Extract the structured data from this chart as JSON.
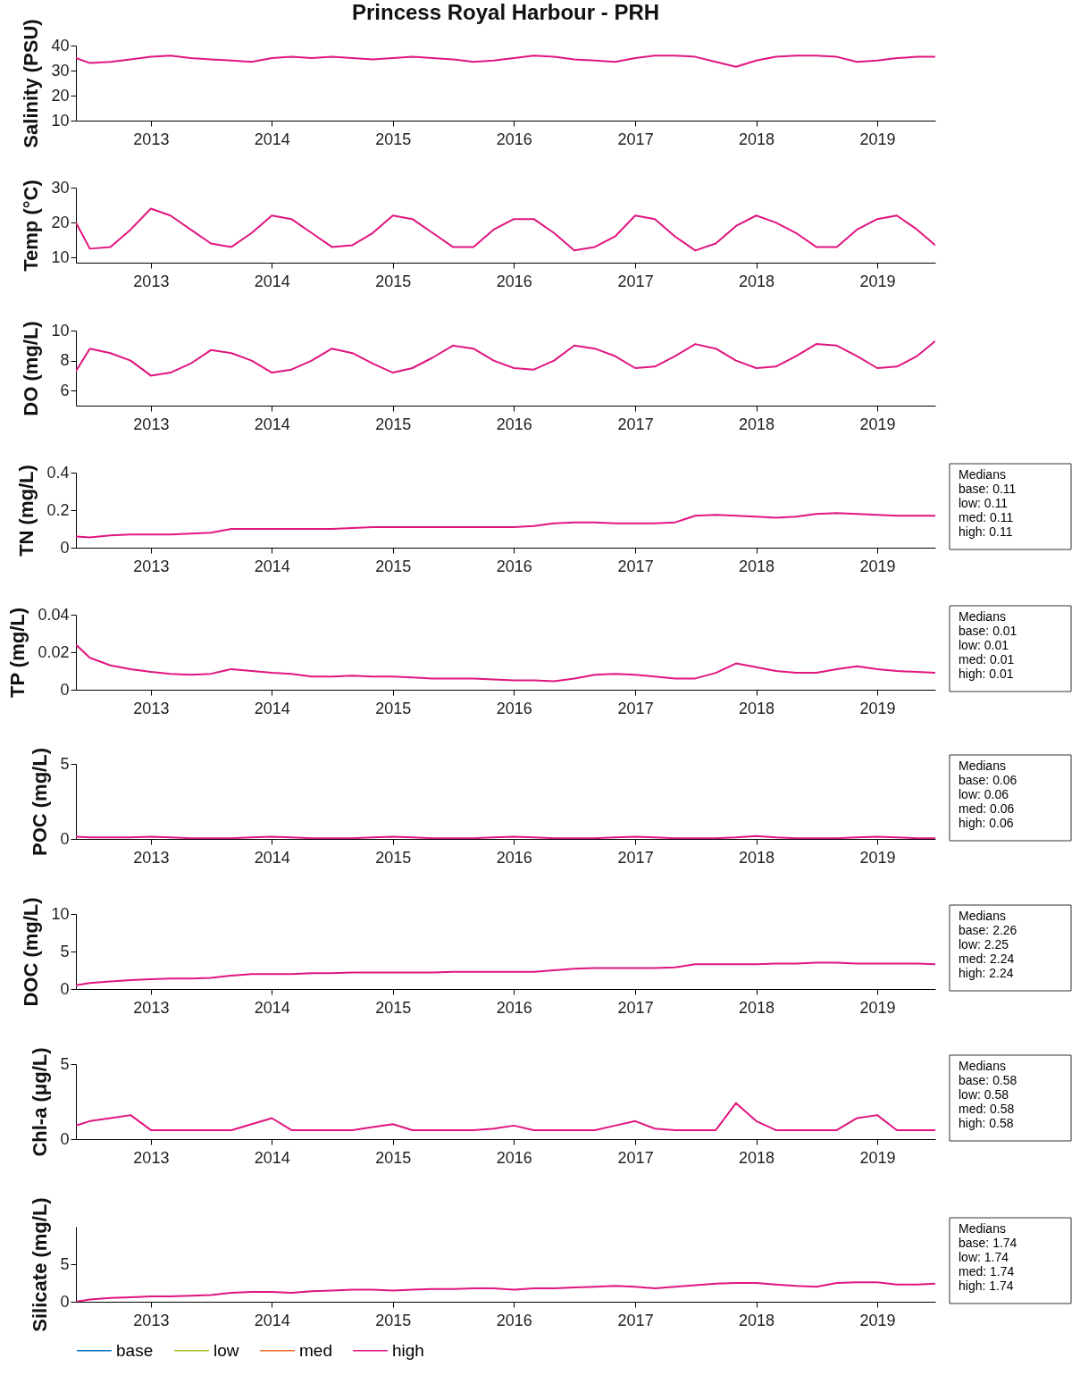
{
  "chart_data": [
    {
      "type": "line",
      "title": "Princess Royal Harbour - PRH",
      "ylabel": "Salinity (PSU)",
      "xlim": [
        "2012-05-20",
        "2019-06-25"
      ],
      "xticks": [
        "2013",
        "2014",
        "2015",
        "2016",
        "2017",
        "2018",
        "2019"
      ],
      "ylim": [
        10,
        40
      ],
      "yticks": [
        10,
        20,
        30,
        40
      ],
      "x": [
        "2012-05-20",
        "2012-07",
        "2012-09",
        "2012-11",
        "2013-01",
        "2013-03",
        "2013-05",
        "2013-07",
        "2013-09",
        "2013-11",
        "2014-01",
        "2014-03",
        "2014-05",
        "2014-07",
        "2014-09",
        "2014-11",
        "2015-01",
        "2015-03",
        "2015-05",
        "2015-07",
        "2015-09",
        "2015-11",
        "2016-01",
        "2016-03",
        "2016-05",
        "2016-07",
        "2016-09",
        "2016-11",
        "2017-01",
        "2017-03",
        "2017-05",
        "2017-07",
        "2017-09",
        "2017-11",
        "2018-01",
        "2018-03",
        "2018-05",
        "2018-07",
        "2018-09",
        "2018-11",
        "2019-01",
        "2019-03",
        "2019-05",
        "2019-06-25"
      ],
      "series": [
        {
          "color": "#e0157f",
          "values": [
            35,
            33,
            33.5,
            34.5,
            35.5,
            36,
            35,
            34.5,
            34,
            33.5,
            35,
            35.5,
            35,
            35.5,
            35,
            34.5,
            35,
            35.5,
            35,
            34.5,
            33.5,
            34,
            35,
            36,
            35.5,
            34.5,
            34,
            33.5,
            35,
            36,
            36,
            35.5,
            33.5,
            31.5,
            34,
            35.5,
            36,
            36,
            35.5,
            33.5,
            34,
            35,
            35.5,
            35.5
          ]
        }
      ]
    },
    {
      "type": "line",
      "ylabel": "Temp (°C)",
      "xlim": [
        "2012-05-20",
        "2019-06-25"
      ],
      "xticks": [
        "2013",
        "2014",
        "2015",
        "2016",
        "2017",
        "2018",
        "2019"
      ],
      "ylim": [
        8.5,
        30
      ],
      "yticks": [
        10,
        20,
        30
      ],
      "x": [
        "2012-05-20",
        "2012-07",
        "2012-09",
        "2012-11",
        "2013-01",
        "2013-03",
        "2013-05",
        "2013-07",
        "2013-09",
        "2013-11",
        "2014-01",
        "2014-03",
        "2014-05",
        "2014-07",
        "2014-09",
        "2014-11",
        "2015-01",
        "2015-03",
        "2015-05",
        "2015-07",
        "2015-09",
        "2015-11",
        "2016-01",
        "2016-03",
        "2016-05",
        "2016-07",
        "2016-09",
        "2016-11",
        "2017-01",
        "2017-03",
        "2017-05",
        "2017-07",
        "2017-09",
        "2017-11",
        "2018-01",
        "2018-03",
        "2018-05",
        "2018-07",
        "2018-09",
        "2018-11",
        "2019-01",
        "2019-03",
        "2019-05",
        "2019-06-25"
      ],
      "series": [
        {
          "color": "#e0157f",
          "values": [
            20,
            12.5,
            13,
            18,
            24,
            22,
            18,
            14,
            13,
            17,
            22,
            21,
            17,
            13,
            13.5,
            17,
            22,
            21,
            17,
            13,
            13,
            18,
            21,
            21,
            17,
            12,
            13,
            16,
            22,
            21,
            16,
            12,
            14,
            19,
            22,
            20,
            17,
            13,
            13,
            18,
            21,
            22,
            18,
            13.5
          ]
        }
      ]
    },
    {
      "type": "line",
      "ylabel": "DO (mg/L)",
      "xlim": [
        "2012-05-20",
        "2019-06-25"
      ],
      "xticks": [
        "2013",
        "2014",
        "2015",
        "2016",
        "2017",
        "2018",
        "2019"
      ],
      "ylim": [
        5,
        10
      ],
      "yticks": [
        6,
        8,
        10
      ],
      "x": [
        "2012-05-20",
        "2012-07",
        "2012-09",
        "2012-11",
        "2013-01",
        "2013-03",
        "2013-05",
        "2013-07",
        "2013-09",
        "2013-11",
        "2014-01",
        "2014-03",
        "2014-05",
        "2014-07",
        "2014-09",
        "2014-11",
        "2015-01",
        "2015-03",
        "2015-05",
        "2015-07",
        "2015-09",
        "2015-11",
        "2016-01",
        "2016-03",
        "2016-05",
        "2016-07",
        "2016-09",
        "2016-11",
        "2017-01",
        "2017-03",
        "2017-05",
        "2017-07",
        "2017-09",
        "2017-11",
        "2018-01",
        "2018-03",
        "2018-05",
        "2018-07",
        "2018-09",
        "2018-11",
        "2019-01",
        "2019-03",
        "2019-05",
        "2019-06-25"
      ],
      "series": [
        {
          "color": "#e0157f",
          "values": [
            7.3,
            8.8,
            8.5,
            8,
            7,
            7.2,
            7.8,
            8.7,
            8.5,
            8,
            7.2,
            7.4,
            8,
            8.8,
            8.5,
            7.8,
            7.2,
            7.5,
            8.2,
            9,
            8.8,
            8,
            7.5,
            7.4,
            8,
            9,
            8.8,
            8.3,
            7.5,
            7.6,
            8.3,
            9.1,
            8.8,
            8,
            7.5,
            7.6,
            8.3,
            9.1,
            9,
            8.3,
            7.5,
            7.6,
            8.3,
            9.3
          ]
        }
      ]
    },
    {
      "type": "line",
      "ylabel": "TN (mg/L)",
      "xlim": [
        "2012-05-20",
        "2019-06-25"
      ],
      "xticks": [
        "2013",
        "2014",
        "2015",
        "2016",
        "2017",
        "2018",
        "2019"
      ],
      "ylim": [
        0,
        0.4
      ],
      "yticks": [
        0,
        0.2,
        0.4
      ],
      "annotations": [
        "Medians\nbase: 0.11\nlow: 0.11\nmed: 0.11\nhigh: 0.11"
      ],
      "x": [
        "2012-05-20",
        "2012-07",
        "2012-09",
        "2012-11",
        "2013-01",
        "2013-03",
        "2013-05",
        "2013-07",
        "2013-09",
        "2013-11",
        "2014-01",
        "2014-03",
        "2014-05",
        "2014-07",
        "2014-09",
        "2014-11",
        "2015-01",
        "2015-03",
        "2015-05",
        "2015-07",
        "2015-09",
        "2015-11",
        "2016-01",
        "2016-03",
        "2016-05",
        "2016-07",
        "2016-09",
        "2016-11",
        "2017-01",
        "2017-03",
        "2017-05",
        "2017-07",
        "2017-09",
        "2017-11",
        "2018-01",
        "2018-03",
        "2018-05",
        "2018-07",
        "2018-09",
        "2018-11",
        "2019-01",
        "2019-03",
        "2019-05",
        "2019-06-25"
      ],
      "series": [
        {
          "color": "#e0157f",
          "values": [
            0.06,
            0.055,
            0.065,
            0.07,
            0.07,
            0.07,
            0.075,
            0.08,
            0.1,
            0.1,
            0.1,
            0.1,
            0.1,
            0.1,
            0.105,
            0.11,
            0.11,
            0.11,
            0.11,
            0.11,
            0.11,
            0.11,
            0.11,
            0.115,
            0.13,
            0.135,
            0.135,
            0.13,
            0.13,
            0.13,
            0.135,
            0.17,
            0.175,
            0.17,
            0.165,
            0.16,
            0.165,
            0.18,
            0.185,
            0.18,
            0.175,
            0.17,
            0.17,
            0.17
          ]
        }
      ]
    },
    {
      "type": "line",
      "ylabel": "TP (mg/L)",
      "xlim": [
        "2012-05-20",
        "2019-06-25"
      ],
      "xticks": [
        "2013",
        "2014",
        "2015",
        "2016",
        "2017",
        "2018",
        "2019"
      ],
      "ylim": [
        0,
        0.04
      ],
      "yticks": [
        0,
        0.02,
        0.04
      ],
      "annotations": [
        "Medians\nbase: 0.01\nlow: 0.01\nmed: 0.01\nhigh: 0.01"
      ],
      "x": [
        "2012-05-20",
        "2012-07",
        "2012-09",
        "2012-11",
        "2013-01",
        "2013-03",
        "2013-05",
        "2013-07",
        "2013-09",
        "2013-11",
        "2014-01",
        "2014-03",
        "2014-05",
        "2014-07",
        "2014-09",
        "2014-11",
        "2015-01",
        "2015-03",
        "2015-05",
        "2015-07",
        "2015-09",
        "2015-11",
        "2016-01",
        "2016-03",
        "2016-05",
        "2016-07",
        "2016-09",
        "2016-11",
        "2017-01",
        "2017-03",
        "2017-05",
        "2017-07",
        "2017-09",
        "2017-11",
        "2018-01",
        "2018-03",
        "2018-05",
        "2018-07",
        "2018-09",
        "2018-11",
        "2019-01",
        "2019-03",
        "2019-05",
        "2019-06-25"
      ],
      "series": [
        {
          "color": "#e0157f",
          "values": [
            0.024,
            0.017,
            0.013,
            0.011,
            0.0095,
            0.0085,
            0.008,
            0.0085,
            0.011,
            0.01,
            0.009,
            0.0085,
            0.007,
            0.007,
            0.0075,
            0.007,
            0.007,
            0.0065,
            0.006,
            0.006,
            0.006,
            0.0055,
            0.005,
            0.005,
            0.0045,
            0.006,
            0.008,
            0.0085,
            0.008,
            0.007,
            0.006,
            0.006,
            0.009,
            0.014,
            0.012,
            0.01,
            0.009,
            0.009,
            0.011,
            0.0125,
            0.011,
            0.01,
            0.0095,
            0.009
          ]
        }
      ]
    },
    {
      "type": "line",
      "ylabel": "POC (mg/L)",
      "xlim": [
        "2012-05-20",
        "2019-06-25"
      ],
      "xticks": [
        "2013",
        "2014",
        "2015",
        "2016",
        "2017",
        "2018",
        "2019"
      ],
      "ylim": [
        0,
        5
      ],
      "yticks": [
        0,
        5
      ],
      "annotations": [
        "Medians\nbase: 0.06\nlow: 0.06\nmed: 0.06\nhigh: 0.06"
      ],
      "x": [
        "2012-05-20",
        "2012-07",
        "2012-09",
        "2012-11",
        "2013-01",
        "2013-03",
        "2013-05",
        "2013-07",
        "2013-09",
        "2013-11",
        "2014-01",
        "2014-03",
        "2014-05",
        "2014-07",
        "2014-09",
        "2014-11",
        "2015-01",
        "2015-03",
        "2015-05",
        "2015-07",
        "2015-09",
        "2015-11",
        "2016-01",
        "2016-03",
        "2016-05",
        "2016-07",
        "2016-09",
        "2016-11",
        "2017-01",
        "2017-03",
        "2017-05",
        "2017-07",
        "2017-09",
        "2017-11",
        "2018-01",
        "2018-03",
        "2018-05",
        "2018-07",
        "2018-09",
        "2018-11",
        "2019-01",
        "2019-03",
        "2019-05",
        "2019-06-25"
      ],
      "series": [
        {
          "color": "#e0157f",
          "values": [
            0.15,
            0.1,
            0.1,
            0.1,
            0.15,
            0.1,
            0.05,
            0.05,
            0.05,
            0.1,
            0.15,
            0.1,
            0.05,
            0.05,
            0.05,
            0.1,
            0.15,
            0.1,
            0.05,
            0.05,
            0.05,
            0.1,
            0.15,
            0.1,
            0.05,
            0.05,
            0.05,
            0.1,
            0.15,
            0.1,
            0.05,
            0.05,
            0.05,
            0.1,
            0.2,
            0.1,
            0.05,
            0.05,
            0.05,
            0.1,
            0.15,
            0.1,
            0.05,
            0.05
          ]
        }
      ]
    },
    {
      "type": "line",
      "ylabel": "DOC (mg/L)",
      "xlim": [
        "2012-05-20",
        "2019-06-25"
      ],
      "xticks": [
        "2013",
        "2014",
        "2015",
        "2016",
        "2017",
        "2018",
        "2019"
      ],
      "ylim": [
        0,
        10
      ],
      "yticks": [
        0,
        5,
        10
      ],
      "annotations": [
        "Medians\nbase: 2.26\nlow: 2.25\nmed: 2.24\nhigh: 2.24"
      ],
      "x": [
        "2012-05-20",
        "2012-07",
        "2012-09",
        "2012-11",
        "2013-01",
        "2013-03",
        "2013-05",
        "2013-07",
        "2013-09",
        "2013-11",
        "2014-01",
        "2014-03",
        "2014-05",
        "2014-07",
        "2014-09",
        "2014-11",
        "2015-01",
        "2015-03",
        "2015-05",
        "2015-07",
        "2015-09",
        "2015-11",
        "2016-01",
        "2016-03",
        "2016-05",
        "2016-07",
        "2016-09",
        "2016-11",
        "2017-01",
        "2017-03",
        "2017-05",
        "2017-07",
        "2017-09",
        "2017-11",
        "2018-01",
        "2018-03",
        "2018-05",
        "2018-07",
        "2018-09",
        "2018-11",
        "2019-01",
        "2019-03",
        "2019-05",
        "2019-06-25"
      ],
      "series": [
        {
          "color": "#e0157f",
          "values": [
            0.5,
            0.8,
            1,
            1.2,
            1.3,
            1.4,
            1.4,
            1.5,
            1.8,
            2,
            2,
            2,
            2.1,
            2.1,
            2.2,
            2.2,
            2.2,
            2.2,
            2.2,
            2.3,
            2.3,
            2.3,
            2.3,
            2.3,
            2.5,
            2.7,
            2.8,
            2.8,
            2.8,
            2.8,
            2.9,
            3.3,
            3.3,
            3.3,
            3.3,
            3.4,
            3.4,
            3.5,
            3.5,
            3.4,
            3.4,
            3.4,
            3.4,
            3.3
          ]
        }
      ]
    },
    {
      "type": "line",
      "ylabel": "Chl-a (μg/L)",
      "xlim": [
        "2012-05-20",
        "2019-06-25"
      ],
      "xticks": [
        "2013",
        "2014",
        "2015",
        "2016",
        "2017",
        "2018",
        "2019"
      ],
      "ylim": [
        0,
        5
      ],
      "yticks": [
        0,
        5
      ],
      "annotations": [
        "Medians\nbase: 0.58\nlow: 0.58\nmed: 0.58\nhigh: 0.58"
      ],
      "x": [
        "2012-05-20",
        "2012-07",
        "2012-09",
        "2012-11",
        "2013-01",
        "2013-03",
        "2013-05",
        "2013-07",
        "2013-09",
        "2013-11",
        "2014-01",
        "2014-03",
        "2014-05",
        "2014-07",
        "2014-09",
        "2014-11",
        "2015-01",
        "2015-03",
        "2015-05",
        "2015-07",
        "2015-09",
        "2015-11",
        "2016-01",
        "2016-03",
        "2016-05",
        "2016-07",
        "2016-09",
        "2016-11",
        "2017-01",
        "2017-03",
        "2017-05",
        "2017-07",
        "2017-09",
        "2017-11",
        "2018-01",
        "2018-03",
        "2018-05",
        "2018-07",
        "2018-09",
        "2018-11",
        "2019-01",
        "2019-03",
        "2019-05",
        "2019-06-25"
      ],
      "series": [
        {
          "color": "#e0157f",
          "values": [
            0.9,
            1.2,
            1.4,
            1.6,
            0.6,
            0.6,
            0.6,
            0.6,
            0.6,
            1,
            1.4,
            0.6,
            0.6,
            0.6,
            0.6,
            0.8,
            1,
            0.6,
            0.6,
            0.6,
            0.6,
            0.7,
            0.9,
            0.6,
            0.6,
            0.6,
            0.6,
            0.9,
            1.2,
            0.7,
            0.6,
            0.6,
            0.6,
            2.4,
            1.2,
            0.6,
            0.6,
            0.6,
            0.6,
            1.4,
            1.6,
            0.6,
            0.6,
            0.6
          ]
        }
      ]
    },
    {
      "type": "line",
      "ylabel": "Silicate (mg/L)",
      "xlim": [
        "2012-05-20",
        "2019-06-25"
      ],
      "xticks": [
        "2013",
        "2014",
        "2015",
        "2016",
        "2017",
        "2018",
        "2019"
      ],
      "ylim": [
        0,
        10
      ],
      "yticks": [
        0,
        5
      ],
      "legend": "bottom",
      "annotations": [
        "Medians\nbase: 1.74\nlow: 1.74\nmed: 1.74\nhigh: 1.74"
      ],
      "x": [
        "2012-05-20",
        "2012-07",
        "2012-09",
        "2012-11",
        "2013-01",
        "2013-03",
        "2013-05",
        "2013-07",
        "2013-09",
        "2013-11",
        "2014-01",
        "2014-03",
        "2014-05",
        "2014-07",
        "2014-09",
        "2014-11",
        "2015-01",
        "2015-03",
        "2015-05",
        "2015-07",
        "2015-09",
        "2015-11",
        "2016-01",
        "2016-03",
        "2016-05",
        "2016-07",
        "2016-09",
        "2016-11",
        "2017-01",
        "2017-03",
        "2017-05",
        "2017-07",
        "2017-09",
        "2017-11",
        "2018-01",
        "2018-03",
        "2018-05",
        "2018-07",
        "2018-09",
        "2018-11",
        "2019-01",
        "2019-03",
        "2019-05",
        "2019-06-25"
      ],
      "series": [
        {
          "name": "base",
          "color": "#0072bd",
          "values": [
            null,
            null,
            null,
            null,
            null,
            null,
            null,
            null,
            null,
            null,
            null,
            null,
            null,
            null,
            null,
            null,
            null,
            null,
            null,
            null,
            null,
            null,
            null,
            null,
            null,
            null,
            null,
            null,
            null,
            null,
            null,
            null,
            null,
            null,
            null,
            null,
            null,
            null,
            null,
            null,
            null,
            null,
            null,
            null
          ]
        },
        {
          "name": "low",
          "color": "#a2c523",
          "values": [
            null,
            null,
            null,
            null,
            null,
            null,
            null,
            null,
            null,
            null,
            null,
            null,
            null,
            null,
            null,
            null,
            null,
            null,
            null,
            null,
            null,
            null,
            null,
            null,
            null,
            null,
            null,
            null,
            null,
            null,
            null,
            null,
            null,
            null,
            null,
            null,
            null,
            null,
            null,
            null,
            null,
            null,
            null,
            null
          ]
        },
        {
          "name": "med",
          "color": "#ec6a2b",
          "values": [
            null,
            null,
            null,
            null,
            null,
            null,
            null,
            null,
            null,
            null,
            null,
            null,
            null,
            null,
            null,
            null,
            null,
            null,
            null,
            null,
            null,
            null,
            null,
            null,
            null,
            null,
            null,
            null,
            null,
            null,
            null,
            null,
            null,
            null,
            null,
            null,
            null,
            null,
            null,
            null,
            null,
            null,
            null,
            null
          ]
        },
        {
          "name": "high",
          "color": "#e0157f",
          "values": [
            0,
            0.3,
            0.5,
            0.6,
            0.7,
            0.7,
            0.8,
            0.9,
            1.2,
            1.3,
            1.3,
            1.2,
            1.4,
            1.5,
            1.6,
            1.6,
            1.5,
            1.6,
            1.7,
            1.7,
            1.8,
            1.8,
            1.6,
            1.8,
            1.8,
            1.9,
            2,
            2.1,
            2,
            1.8,
            2,
            2.2,
            2.4,
            2.5,
            2.5,
            2.3,
            2.1,
            2,
            2.5,
            2.6,
            2.6,
            2.3,
            2.3,
            2.4
          ]
        }
      ]
    }
  ]
}
